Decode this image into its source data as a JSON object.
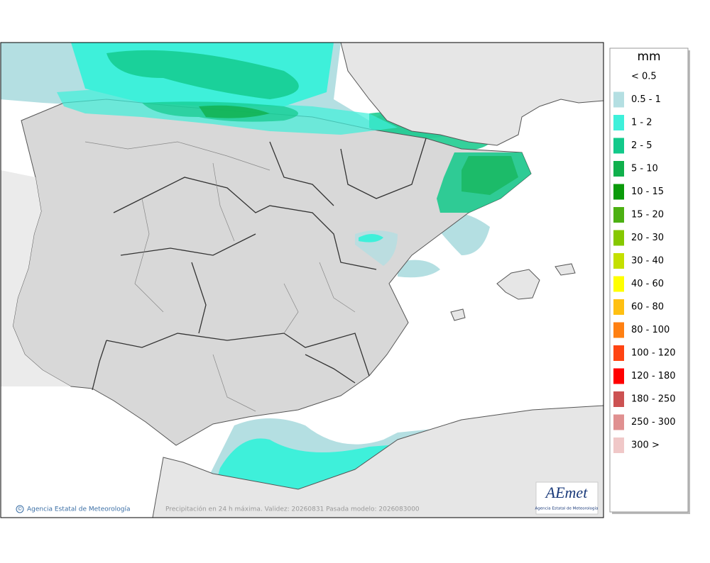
{
  "legend": {
    "unit": "mm",
    "items": [
      {
        "label": "< 0.5",
        "color": "#ffffff"
      },
      {
        "label": "0.5 - 1",
        "color": "#b4dfe2"
      },
      {
        "label": "1 - 2",
        "color": "#3ef0da"
      },
      {
        "label": "2 - 5",
        "color": "#12c98a"
      },
      {
        "label": "5 - 10",
        "color": "#10b04c"
      },
      {
        "label": "10 - 15",
        "color": "#0a9a0a"
      },
      {
        "label": "15 - 20",
        "color": "#4cb012"
      },
      {
        "label": "20 - 30",
        "color": "#86c800"
      },
      {
        "label": "30 - 40",
        "color": "#c4e000"
      },
      {
        "label": "40 - 60",
        "color": "#ffff00"
      },
      {
        "label": "60 - 80",
        "color": "#ffc012"
      },
      {
        "label": "80 - 100",
        "color": "#ff8012"
      },
      {
        "label": "100 - 120",
        "color": "#ff4412"
      },
      {
        "label": "120 - 180",
        "color": "#ff0000"
      },
      {
        "label": "180 - 250",
        "color": "#cc5252"
      },
      {
        "label": "250 - 300",
        "color": "#e09090"
      },
      {
        "label": "300 >",
        "color": "#f0c8c8"
      }
    ]
  },
  "footer": {
    "copyright": "©",
    "agency": "Agencia Estatal de Meteorología",
    "caption": "Precipitación en 24 h máxima. Validez: 20260831 Pasada modelo: 2026083000"
  },
  "logo": {
    "mark": "AEmet",
    "text": "Agencia Estatal de Meteorología"
  }
}
